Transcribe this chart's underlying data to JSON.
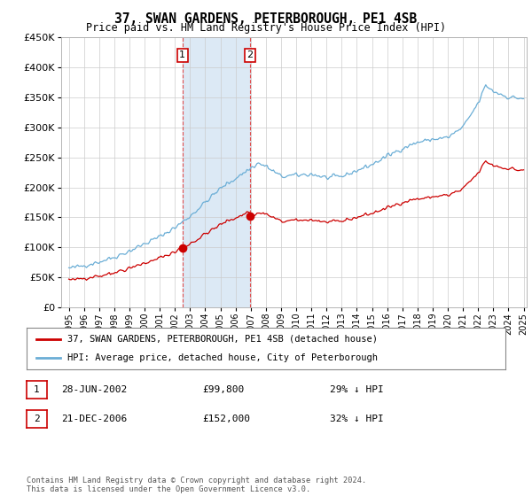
{
  "title": "37, SWAN GARDENS, PETERBOROUGH, PE1 4SB",
  "subtitle": "Price paid vs. HM Land Registry's House Price Index (HPI)",
  "legend_line1": "37, SWAN GARDENS, PETERBOROUGH, PE1 4SB (detached house)",
  "legend_line2": "HPI: Average price, detached house, City of Peterborough",
  "sale1_date": "28-JUN-2002",
  "sale1_price": 99800,
  "sale1_hpi_text": "29% ↓ HPI",
  "sale2_date": "21-DEC-2006",
  "sale2_price": 152000,
  "sale2_hpi_text": "32% ↓ HPI",
  "footer": "Contains HM Land Registry data © Crown copyright and database right 2024.\nThis data is licensed under the Open Government Licence v3.0.",
  "hpi_color": "#6baed6",
  "price_color": "#cc0000",
  "highlight_color": "#dce9f5",
  "background_color": "#ffffff",
  "grid_color": "#cccccc",
  "sale1_year": 2002.5,
  "sale2_year": 2006.96,
  "hpi_at_sale1": 140000,
  "hpi_at_sale2": 224000,
  "ylim_max": 450000,
  "yticks": [
    0,
    50000,
    100000,
    150000,
    200000,
    250000,
    300000,
    350000,
    400000,
    450000
  ]
}
